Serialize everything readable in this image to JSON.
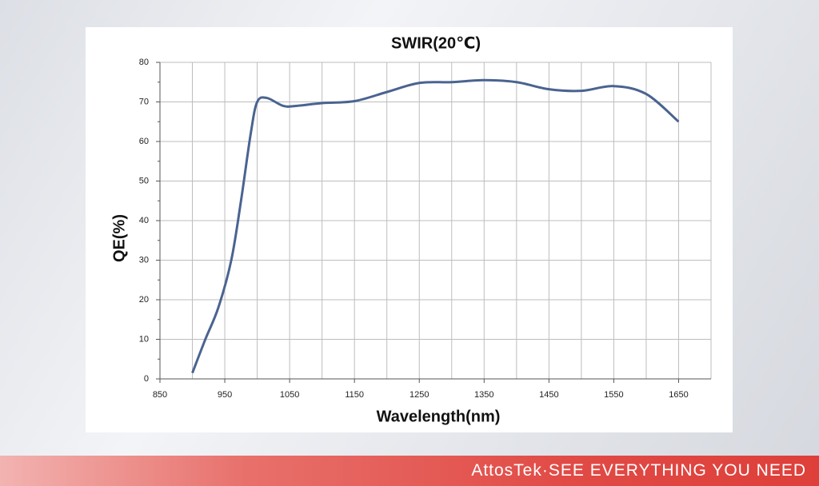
{
  "chart_data": {
    "type": "line",
    "title": "SWIR(20℃)",
    "x_label": "Wavelength(nm)",
    "y_label": "QE(%)",
    "x": [
      900,
      920,
      940,
      960,
      975,
      990,
      1000,
      1015,
      1040,
      1060,
      1100,
      1150,
      1200,
      1250,
      1300,
      1350,
      1400,
      1450,
      1500,
      1550,
      1600,
      1650
    ],
    "series": [
      {
        "name": "QE",
        "color": "#4a6390",
        "values": [
          1.5,
          10,
          18,
          30,
          45,
          62,
          70,
          71,
          69,
          69,
          69.7,
          70.2,
          72.5,
          74.8,
          75,
          75.5,
          75,
          73.2,
          72.8,
          74,
          72,
          65
        ]
      }
    ],
    "xlim": [
      850,
      1700
    ],
    "xticks": [
      850,
      950,
      1050,
      1150,
      1250,
      1350,
      1450,
      1550,
      1650
    ],
    "ylim": [
      0,
      80
    ],
    "yticks": [
      0,
      10,
      20,
      30,
      40,
      50,
      60,
      70,
      80
    ],
    "grid": true
  },
  "footer": "AttosTek·SEE EVERYTHING YOU NEED"
}
